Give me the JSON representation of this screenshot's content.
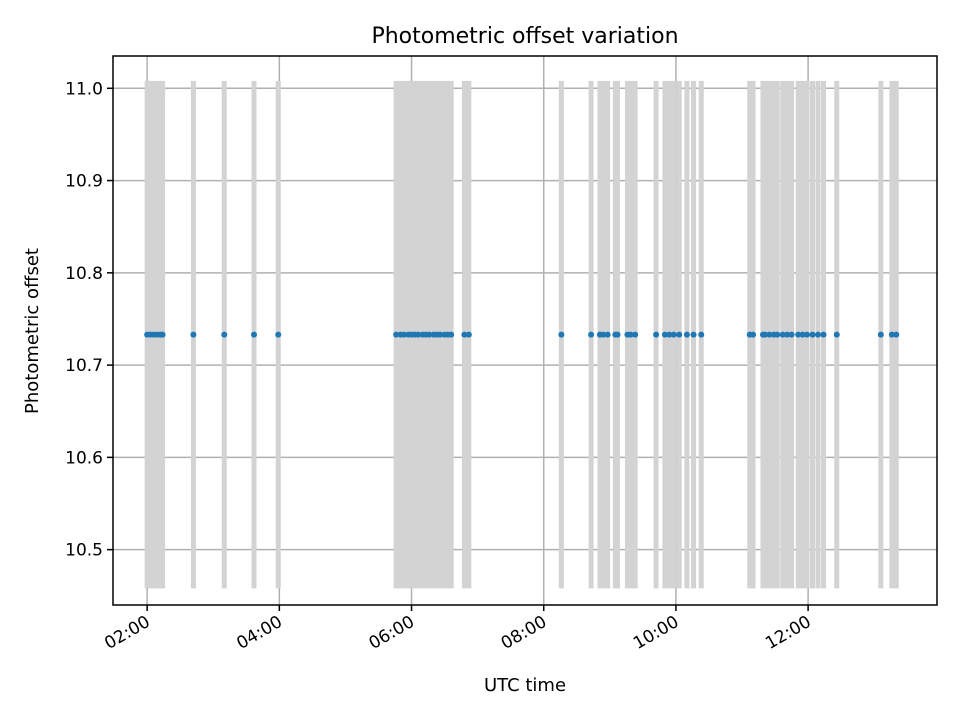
{
  "chart_data": {
    "type": "scatter",
    "title": "Photometric offset variation",
    "xlabel": "UTC time",
    "ylabel": "Photometric offset",
    "x_tick_labels": [
      "02:00",
      "04:00",
      "06:00",
      "08:00",
      "10:00",
      "12:00"
    ],
    "y_tick_labels": [
      "10.5",
      "10.6",
      "10.7",
      "10.8",
      "10.9",
      "11.0"
    ],
    "xlim": [
      "01:29",
      "13:57"
    ],
    "ylim": [
      10.44,
      11.035
    ],
    "grid": true,
    "point_color": "#1f77b4",
    "band_color": "#d3d3d3",
    "band_ylim": [
      10.458,
      11.008
    ],
    "series": [
      {
        "x": [
          "02:00",
          "02:03",
          "02:06",
          "02:09",
          "02:12",
          "02:14",
          "02:42",
          "03:10",
          "03:37",
          "03:59",
          "05:46",
          "05:50",
          "05:53",
          "05:57",
          "06:00",
          "06:03",
          "06:06",
          "06:10",
          "06:13",
          "06:16",
          "06:20",
          "06:23",
          "06:26",
          "06:30",
          "06:33",
          "06:36",
          "06:48",
          "06:52",
          "08:16",
          "08:43",
          "08:51",
          "08:54",
          "08:58",
          "09:05",
          "09:07",
          "09:16",
          "09:19",
          "09:23",
          "09:42",
          "09:50",
          "09:54",
          "09:58",
          "10:03",
          "10:10",
          "10:16",
          "10:23",
          "11:07",
          "11:10",
          "11:19",
          "11:21",
          "11:25",
          "11:29",
          "11:32",
          "11:37",
          "11:41",
          "11:45",
          "11:51",
          "11:55",
          "11:59",
          "12:04",
          "12:09",
          "12:14",
          "12:26",
          "13:06",
          "13:16",
          "13:20"
        ],
        "y": [
          10.733,
          10.733,
          10.733,
          10.733,
          10.733,
          10.733,
          10.733,
          10.733,
          10.733,
          10.733,
          10.733,
          10.733,
          10.733,
          10.733,
          10.733,
          10.733,
          10.733,
          10.733,
          10.733,
          10.733,
          10.733,
          10.733,
          10.733,
          10.733,
          10.733,
          10.733,
          10.733,
          10.733,
          10.733,
          10.733,
          10.733,
          10.733,
          10.733,
          10.733,
          10.733,
          10.733,
          10.733,
          10.733,
          10.733,
          10.733,
          10.733,
          10.733,
          10.733,
          10.733,
          10.733,
          10.733,
          10.733,
          10.733,
          10.733,
          10.733,
          10.733,
          10.733,
          10.733,
          10.733,
          10.733,
          10.733,
          10.733,
          10.733,
          10.733,
          10.733,
          10.733,
          10.733,
          10.733,
          10.733,
          10.733,
          10.733
        ]
      }
    ]
  }
}
